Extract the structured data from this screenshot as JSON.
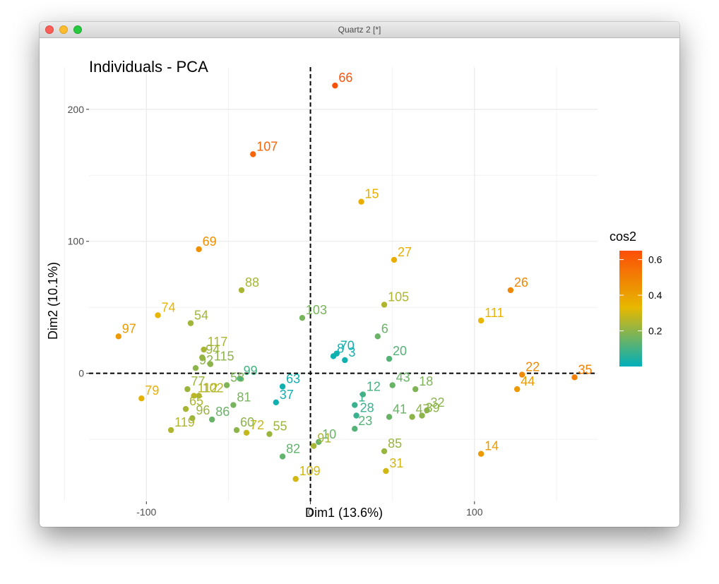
{
  "window": {
    "title": "Quartz 2 [*]"
  },
  "chart_data": {
    "type": "scatter",
    "title": "Individuals - PCA",
    "xlabel": "Dim1 (13.6%)",
    "ylabel": "Dim2 (10.1%)",
    "xlim": [
      -135,
      175
    ],
    "ylim": [
      -97,
      232
    ],
    "x_ticks": [
      -100,
      0,
      100
    ],
    "y_ticks": [
      0,
      100,
      200
    ],
    "x_minor_ticks": [
      -150,
      -50,
      50,
      150
    ],
    "y_minor_ticks": [
      -50,
      50,
      150
    ],
    "grid": true,
    "reference_lines": {
      "x": 0,
      "y": 0,
      "style": "dashed"
    },
    "legend": {
      "title": "cos2",
      "position": "right",
      "ticks": [
        0.2,
        0.4,
        0.6
      ],
      "range": [
        0.0,
        0.65
      ]
    },
    "color_scale": {
      "stops": [
        [
          0.0,
          "#00AFBB"
        ],
        [
          0.33,
          "#E7B800"
        ],
        [
          0.65,
          "#FC4E07"
        ]
      ]
    },
    "points": [
      {
        "label": "66",
        "x": 15,
        "y": 218,
        "cos2": 0.64
      },
      {
        "label": "107",
        "x": -35,
        "y": 166,
        "cos2": 0.58
      },
      {
        "label": "15",
        "x": 31,
        "y": 130,
        "cos2": 0.36
      },
      {
        "label": "69",
        "x": -68,
        "y": 94,
        "cos2": 0.45
      },
      {
        "label": "27",
        "x": 51,
        "y": 86,
        "cos2": 0.36
      },
      {
        "label": "88",
        "x": -42,
        "y": 63,
        "cos2": 0.24
      },
      {
        "label": "26",
        "x": 122,
        "y": 63,
        "cos2": 0.48
      },
      {
        "label": "105",
        "x": 45,
        "y": 52,
        "cos2": 0.25
      },
      {
        "label": "74",
        "x": -93,
        "y": 44,
        "cos2": 0.34
      },
      {
        "label": "54",
        "x": -73,
        "y": 38,
        "cos2": 0.23
      },
      {
        "label": "111",
        "x": 104,
        "y": 40,
        "cos2": 0.34
      },
      {
        "label": "103",
        "x": -5,
        "y": 42,
        "cos2": 0.17
      },
      {
        "label": "97",
        "x": -117,
        "y": 28,
        "cos2": 0.42
      },
      {
        "label": "6",
        "x": 41,
        "y": 28,
        "cos2": 0.15
      },
      {
        "label": "117",
        "x": -65,
        "y": 18,
        "cos2": 0.24
      },
      {
        "label": "70",
        "x": 16,
        "y": 15,
        "cos2": 0.02
      },
      {
        "label": "94",
        "x": -66,
        "y": 12,
        "cos2": 0.22
      },
      {
        "label": "8",
        "x": 14,
        "y": 13,
        "cos2": 0.02
      },
      {
        "label": "20",
        "x": 48,
        "y": 11,
        "cos2": 0.12
      },
      {
        "label": "3",
        "x": 21,
        "y": 10,
        "cos2": 0.02
      },
      {
        "label": "115",
        "x": -61,
        "y": 7,
        "cos2": 0.2
      },
      {
        "label": "92",
        "x": -70,
        "y": 4,
        "cos2": 0.2
      },
      {
        "label": "22",
        "x": 129,
        "y": -1,
        "cos2": 0.47
      },
      {
        "label": "35",
        "x": 161,
        "y": -3,
        "cos2": 0.5
      },
      {
        "label": "99",
        "x": -43,
        "y": -4,
        "cos2": 0.1
      },
      {
        "label": "63",
        "x": -17,
        "y": -10,
        "cos2": 0.02
      },
      {
        "label": "43",
        "x": 50,
        "y": -9,
        "cos2": 0.15
      },
      {
        "label": "18",
        "x": 64,
        "y": -12,
        "cos2": 0.18
      },
      {
        "label": "12",
        "x": 32,
        "y": -16,
        "cos2": 0.1
      },
      {
        "label": "58",
        "x": -51,
        "y": -9,
        "cos2": 0.18
      },
      {
        "label": "44",
        "x": 126,
        "y": -12,
        "cos2": 0.42
      },
      {
        "label": "79",
        "x": -103,
        "y": -19,
        "cos2": 0.35
      },
      {
        "label": "112",
        "x": -71,
        "y": -17,
        "cos2": 0.27
      },
      {
        "label": "102",
        "x": -68,
        "y": -17,
        "cos2": 0.25
      },
      {
        "label": "77",
        "x": -75,
        "y": -12,
        "cos2": 0.22
      },
      {
        "label": "1",
        "x": 27,
        "y": -24,
        "cos2": 0.08
      },
      {
        "label": "37",
        "x": -21,
        "y": -22,
        "cos2": 0.02
      },
      {
        "label": "41",
        "x": 48,
        "y": -33,
        "cos2": 0.15
      },
      {
        "label": "32",
        "x": 71,
        "y": -28,
        "cos2": 0.2
      },
      {
        "label": "39",
        "x": 68,
        "y": -32,
        "cos2": 0.2
      },
      {
        "label": "28",
        "x": 28,
        "y": -32,
        "cos2": 0.08
      },
      {
        "label": "65",
        "x": -76,
        "y": -27,
        "cos2": 0.24
      },
      {
        "label": "96",
        "x": -72,
        "y": -34,
        "cos2": 0.22
      },
      {
        "label": "47",
        "x": 62,
        "y": -33,
        "cos2": 0.2
      },
      {
        "label": "86",
        "x": -60,
        "y": -35,
        "cos2": 0.15
      },
      {
        "label": "81",
        "x": -47,
        "y": -24,
        "cos2": 0.17
      },
      {
        "label": "60",
        "x": -45,
        "y": -43,
        "cos2": 0.2
      },
      {
        "label": "72",
        "x": -39,
        "y": -45,
        "cos2": 0.28
      },
      {
        "label": "119",
        "x": -85,
        "y": -43,
        "cos2": 0.25
      },
      {
        "label": "23",
        "x": 27,
        "y": -42,
        "cos2": 0.12
      },
      {
        "label": "10",
        "x": 5,
        "y": -52,
        "cos2": 0.15
      },
      {
        "label": "55",
        "x": -25,
        "y": -46,
        "cos2": 0.22
      },
      {
        "label": "91",
        "x": 2,
        "y": -55,
        "cos2": 0.24
      },
      {
        "label": "82",
        "x": -17,
        "y": -63,
        "cos2": 0.14
      },
      {
        "label": "85",
        "x": 45,
        "y": -59,
        "cos2": 0.22
      },
      {
        "label": "14",
        "x": 104,
        "y": -61,
        "cos2": 0.42
      },
      {
        "label": "31",
        "x": 46,
        "y": -74,
        "cos2": 0.3
      },
      {
        "label": "109",
        "x": -9,
        "y": -80,
        "cos2": 0.3
      }
    ]
  }
}
